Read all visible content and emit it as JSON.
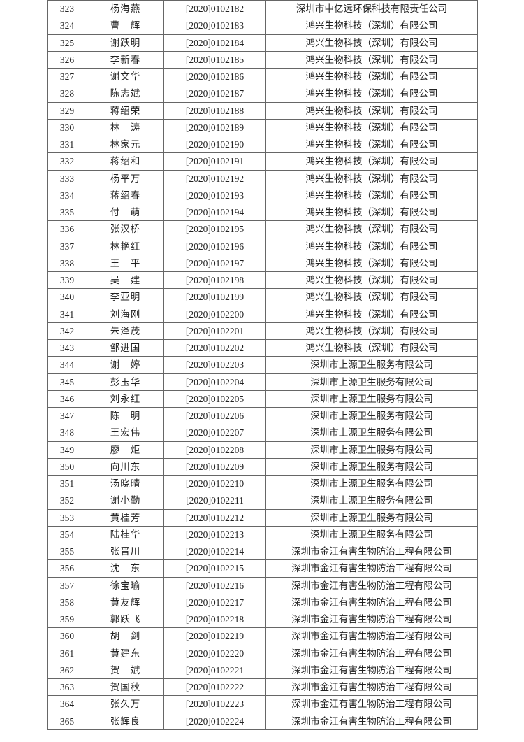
{
  "rows": [
    {
      "no": "323",
      "name": "杨海燕",
      "cert": "[2020]0102182",
      "company": "深圳市中亿远环保科技有限责任公司"
    },
    {
      "no": "324",
      "name": "曹　辉",
      "cert": "[2020]0102183",
      "company": "鸿兴生物科技（深圳）有限公司"
    },
    {
      "no": "325",
      "name": "谢跃明",
      "cert": "[2020]0102184",
      "company": "鸿兴生物科技（深圳）有限公司"
    },
    {
      "no": "326",
      "name": "李新春",
      "cert": "[2020]0102185",
      "company": "鸿兴生物科技（深圳）有限公司"
    },
    {
      "no": "327",
      "name": "谢文华",
      "cert": "[2020]0102186",
      "company": "鸿兴生物科技（深圳）有限公司"
    },
    {
      "no": "328",
      "name": "陈志斌",
      "cert": "[2020]0102187",
      "company": "鸿兴生物科技（深圳）有限公司"
    },
    {
      "no": "329",
      "name": "蒋绍荣",
      "cert": "[2020]0102188",
      "company": "鸿兴生物科技（深圳）有限公司"
    },
    {
      "no": "330",
      "name": "林　涛",
      "cert": "[2020]0102189",
      "company": "鸿兴生物科技（深圳）有限公司"
    },
    {
      "no": "331",
      "name": "林家元",
      "cert": "[2020]0102190",
      "company": "鸿兴生物科技（深圳）有限公司"
    },
    {
      "no": "332",
      "name": "蒋绍和",
      "cert": "[2020]0102191",
      "company": "鸿兴生物科技（深圳）有限公司"
    },
    {
      "no": "333",
      "name": "杨平万",
      "cert": "[2020]0102192",
      "company": "鸿兴生物科技（深圳）有限公司"
    },
    {
      "no": "334",
      "name": "蒋绍春",
      "cert": "[2020]0102193",
      "company": "鸿兴生物科技（深圳）有限公司"
    },
    {
      "no": "335",
      "name": "付　萌",
      "cert": "[2020]0102194",
      "company": "鸿兴生物科技（深圳）有限公司"
    },
    {
      "no": "336",
      "name": "张汉桥",
      "cert": "[2020]0102195",
      "company": "鸿兴生物科技（深圳）有限公司"
    },
    {
      "no": "337",
      "name": "林艳红",
      "cert": "[2020]0102196",
      "company": "鸿兴生物科技（深圳）有限公司"
    },
    {
      "no": "338",
      "name": "王　平",
      "cert": "[2020]0102197",
      "company": "鸿兴生物科技（深圳）有限公司"
    },
    {
      "no": "339",
      "name": "吴　建",
      "cert": "[2020]0102198",
      "company": "鸿兴生物科技（深圳）有限公司"
    },
    {
      "no": "340",
      "name": "李亚明",
      "cert": "[2020]0102199",
      "company": "鸿兴生物科技（深圳）有限公司"
    },
    {
      "no": "341",
      "name": "刘海刚",
      "cert": "[2020]0102200",
      "company": "鸿兴生物科技（深圳）有限公司"
    },
    {
      "no": "342",
      "name": "朱泽茂",
      "cert": "[2020]0102201",
      "company": "鸿兴生物科技（深圳）有限公司"
    },
    {
      "no": "343",
      "name": "邹进国",
      "cert": "[2020]0102202",
      "company": "鸿兴生物科技（深圳）有限公司"
    },
    {
      "no": "344",
      "name": "谢　婷",
      "cert": "[2020]0102203",
      "company": "深圳市上源卫生服务有限公司"
    },
    {
      "no": "345",
      "name": "彭玉华",
      "cert": "[2020]0102204",
      "company": "深圳市上源卫生服务有限公司"
    },
    {
      "no": "346",
      "name": "刘永红",
      "cert": "[2020]0102205",
      "company": "深圳市上源卫生服务有限公司"
    },
    {
      "no": "347",
      "name": "陈　明",
      "cert": "[2020]0102206",
      "company": "深圳市上源卫生服务有限公司"
    },
    {
      "no": "348",
      "name": "王宏伟",
      "cert": "[2020]0102207",
      "company": "深圳市上源卫生服务有限公司"
    },
    {
      "no": "349",
      "name": "廖　炬",
      "cert": "[2020]0102208",
      "company": "深圳市上源卫生服务有限公司"
    },
    {
      "no": "350",
      "name": "向川东",
      "cert": "[2020]0102209",
      "company": "深圳市上源卫生服务有限公司"
    },
    {
      "no": "351",
      "name": "汤晓晴",
      "cert": "[2020]0102210",
      "company": "深圳市上源卫生服务有限公司"
    },
    {
      "no": "352",
      "name": "谢小勤",
      "cert": "[2020]0102211",
      "company": "深圳市上源卫生服务有限公司"
    },
    {
      "no": "353",
      "name": "黄桂芳",
      "cert": "[2020]0102212",
      "company": "深圳市上源卫生服务有限公司"
    },
    {
      "no": "354",
      "name": "陆桂华",
      "cert": "[2020]0102213",
      "company": "深圳市上源卫生服务有限公司"
    },
    {
      "no": "355",
      "name": "张晋川",
      "cert": "[2020]0102214",
      "company": "深圳市金江有害生物防治工程有限公司"
    },
    {
      "no": "356",
      "name": "沈　东",
      "cert": "[2020]0102215",
      "company": "深圳市金江有害生物防治工程有限公司"
    },
    {
      "no": "357",
      "name": "徐宝瑜",
      "cert": "[2020]0102216",
      "company": "深圳市金江有害生物防治工程有限公司"
    },
    {
      "no": "358",
      "name": "黄友辉",
      "cert": "[2020]0102217",
      "company": "深圳市金江有害生物防治工程有限公司"
    },
    {
      "no": "359",
      "name": "郭跃飞",
      "cert": "[2020]0102218",
      "company": "深圳市金江有害生物防治工程有限公司"
    },
    {
      "no": "360",
      "name": "胡　剑",
      "cert": "[2020]0102219",
      "company": "深圳市金江有害生物防治工程有限公司"
    },
    {
      "no": "361",
      "name": "黄建东",
      "cert": "[2020]0102220",
      "company": "深圳市金江有害生物防治工程有限公司"
    },
    {
      "no": "362",
      "name": "贺　斌",
      "cert": "[2020]0102221",
      "company": "深圳市金江有害生物防治工程有限公司"
    },
    {
      "no": "363",
      "name": "贺国秋",
      "cert": "[2020]0102222",
      "company": "深圳市金江有害生物防治工程有限公司"
    },
    {
      "no": "364",
      "name": "张久万",
      "cert": "[2020]0102223",
      "company": "深圳市金江有害生物防治工程有限公司"
    },
    {
      "no": "365",
      "name": "张辉良",
      "cert": "[2020]0102224",
      "company": "深圳市金江有害生物防治工程有限公司"
    }
  ]
}
